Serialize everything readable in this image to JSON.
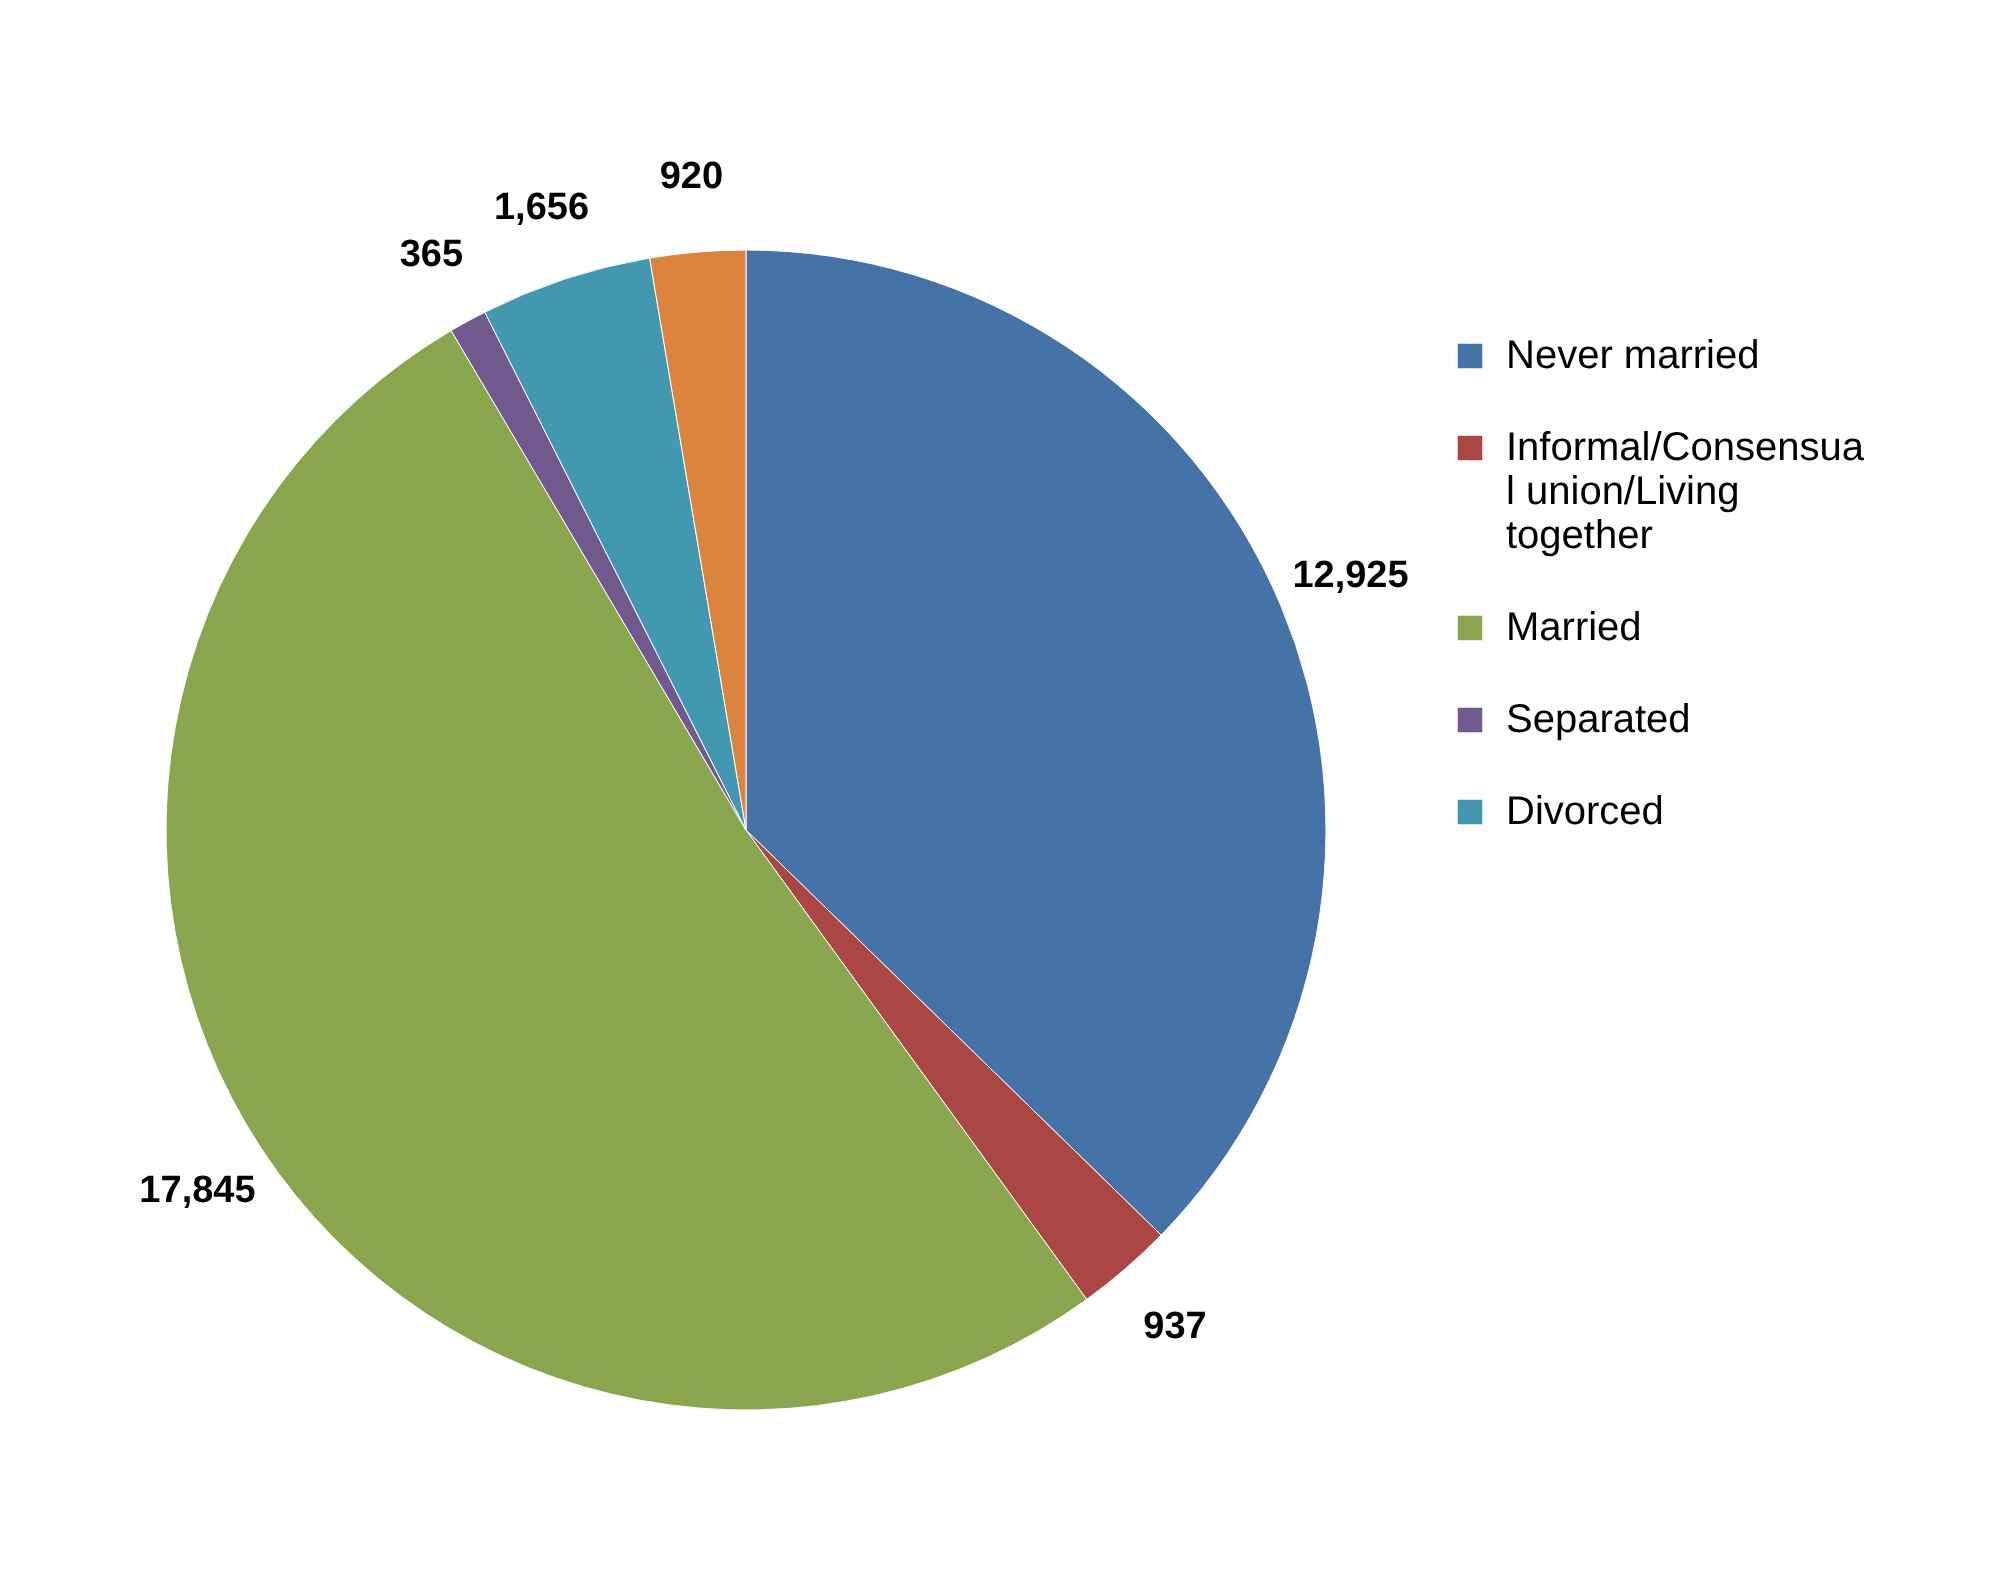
{
  "chart_data": {
    "type": "pie",
    "categories": [
      "Never married",
      "Informal/Consensual union/Living together",
      "Married",
      "Separated",
      "Divorced",
      null
    ],
    "values": [
      12925,
      937,
      17845,
      365,
      1656,
      920
    ],
    "colors": [
      "#4572a7",
      "#aa4643",
      "#89a54e",
      "#71588f",
      "#4198af",
      "#db843d"
    ],
    "value_labels": [
      "12,925",
      "937",
      "17,845",
      "365",
      "1,656",
      "920"
    ],
    "legend": "right"
  }
}
